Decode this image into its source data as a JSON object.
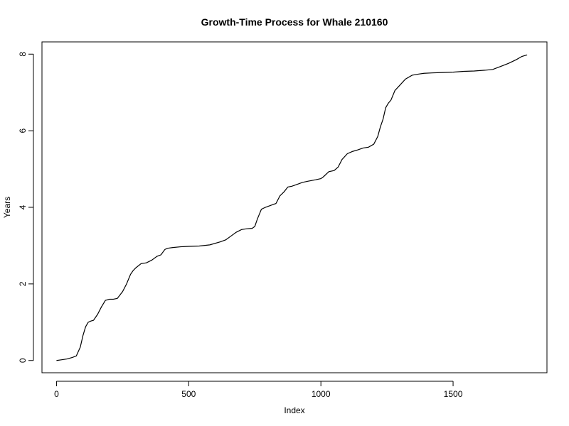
{
  "chart_data": {
    "type": "line",
    "title": "Growth-Time Process for Whale 210160",
    "xlabel": "Index",
    "ylabel": "Years",
    "xlim": [
      -55,
      1855
    ],
    "ylim": [
      -0.32,
      8.32
    ],
    "x_ticks": [
      0,
      500,
      1000,
      1500
    ],
    "y_ticks": [
      0,
      2,
      4,
      6,
      8
    ],
    "x_tick_labels": [
      "0",
      "500",
      "1000",
      "1500"
    ],
    "y_tick_labels": [
      "0",
      "2",
      "4",
      "6",
      "8"
    ],
    "grid": false,
    "line_color": "#000000",
    "series": [
      {
        "x": [
          0,
          20,
          40,
          60,
          75,
          90,
          100,
          110,
          120,
          130,
          140,
          155,
          170,
          185,
          200,
          215,
          230,
          250,
          265,
          280,
          290,
          300,
          320,
          340,
          360,
          380,
          395,
          410,
          420,
          440,
          470,
          500,
          540,
          580,
          620,
          640,
          660,
          680,
          700,
          720,
          740,
          750,
          760,
          775,
          790,
          810,
          830,
          845,
          860,
          875,
          890,
          910,
          930,
          950,
          980,
          1000,
          1010,
          1030,
          1050,
          1065,
          1080,
          1100,
          1120,
          1140,
          1160,
          1180,
          1200,
          1215,
          1225,
          1235,
          1245,
          1255,
          1265,
          1280,
          1300,
          1320,
          1345,
          1370,
          1390,
          1420,
          1460,
          1500,
          1540,
          1580,
          1620,
          1650,
          1680,
          1710,
          1740,
          1760,
          1780
        ],
        "y": [
          0.0,
          0.02,
          0.04,
          0.08,
          0.12,
          0.35,
          0.65,
          0.88,
          1.0,
          1.03,
          1.05,
          1.2,
          1.4,
          1.57,
          1.6,
          1.6,
          1.62,
          1.8,
          2.0,
          2.25,
          2.35,
          2.42,
          2.53,
          2.55,
          2.62,
          2.72,
          2.76,
          2.9,
          2.93,
          2.95,
          2.97,
          2.98,
          2.99,
          3.02,
          3.1,
          3.15,
          3.25,
          3.35,
          3.42,
          3.44,
          3.45,
          3.5,
          3.7,
          3.95,
          4.0,
          4.05,
          4.1,
          4.3,
          4.4,
          4.53,
          4.55,
          4.6,
          4.65,
          4.68,
          4.72,
          4.75,
          4.8,
          4.93,
          4.96,
          5.05,
          5.25,
          5.4,
          5.46,
          5.5,
          5.55,
          5.57,
          5.65,
          5.85,
          6.1,
          6.3,
          6.6,
          6.72,
          6.8,
          7.05,
          7.2,
          7.35,
          7.45,
          7.48,
          7.5,
          7.51,
          7.52,
          7.53,
          7.55,
          7.56,
          7.58,
          7.6,
          7.68,
          7.76,
          7.86,
          7.94,
          7.98
        ]
      }
    ]
  }
}
